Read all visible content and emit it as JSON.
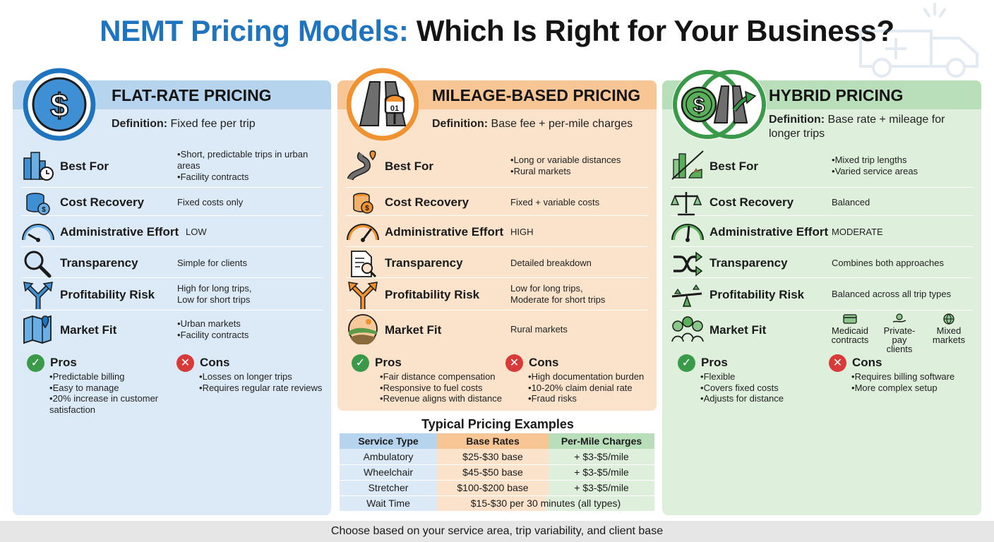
{
  "title": {
    "part1": "NEMT Pricing Models:",
    "part2": "Which Is Right for Your Business?"
  },
  "row_labels": {
    "best_for": "Best For",
    "cost_recovery": "Cost Recovery",
    "admin_effort": "Administrative Effort",
    "transparency": "Transparency",
    "profit_risk": "Profitability Risk",
    "market_fit": "Market Fit"
  },
  "pros_label": "Pros",
  "cons_label": "Cons",
  "definition_label": "Definition:",
  "flat": {
    "title": "FLAT-RATE PRICING",
    "definition": "Fixed fee per trip",
    "best_for": [
      "Short, predictable trips in urban areas",
      "Facility contracts"
    ],
    "cost_recovery": "Fixed costs only",
    "admin_effort": "LOW",
    "transparency": "Simple for clients",
    "profit_risk": [
      "High for long trips,",
      "Low for short trips"
    ],
    "market_fit": [
      "Urban markets",
      "Facility contracts"
    ],
    "pros": [
      "Predictable billing",
      "Easy to manage",
      "20% increase in customer satisfaction"
    ],
    "cons": [
      "Losses on longer trips",
      "Requires regular rate reviews"
    ]
  },
  "mileage": {
    "title": "MILEAGE-BASED PRICING",
    "definition": "Base fee + per-mile charges",
    "sign_number": "01",
    "best_for": [
      "Long or variable distances",
      "Rural markets"
    ],
    "cost_recovery": "Fixed + variable costs",
    "admin_effort": "HIGH",
    "transparency": "Detailed breakdown",
    "profit_risk": [
      "Low for long trips,",
      "Moderate for short trips"
    ],
    "market_fit": "Rural markets",
    "pros": [
      "Fair distance compensation",
      "Responsive to fuel costs",
      "Revenue aligns with distance"
    ],
    "cons": [
      "High documentation burden",
      "10-20% claim denial rate",
      "Fraud risks"
    ]
  },
  "hybrid": {
    "title": "HYBRID PRICING",
    "definition": "Base rate + mileage for longer trips",
    "best_for": [
      "Mixed trip lengths",
      "Varied service areas"
    ],
    "cost_recovery": "Balanced",
    "admin_effort": "MODERATE",
    "transparency": "Combines both approaches",
    "profit_risk": "Balanced across all trip types",
    "market_fit": [
      {
        "l1": "Medicaid",
        "l2": "contracts"
      },
      {
        "l1": "Private-pay",
        "l2": "clients"
      },
      {
        "l1": "Mixed",
        "l2": "markets"
      }
    ],
    "pros": [
      "Flexible",
      "Covers fixed costs",
      "Adjusts for distance"
    ],
    "cons": [
      "Requires billing software",
      "More complex setup"
    ]
  },
  "pricing_table": {
    "title": "Typical Pricing Examples",
    "headers": [
      "Service Type",
      "Base Rates",
      "Per-Mile Charges"
    ],
    "rows": [
      [
        "Ambulatory",
        "$25-$30 base",
        "+ $3-$5/mile"
      ],
      [
        "Wheelchair",
        "$45-$50 base",
        "+ $3-$5/mile"
      ],
      [
        "Stretcher",
        "$100-$200 base",
        "+ $3-$5/mile"
      ]
    ],
    "wait_row": [
      "Wait Time",
      "$15-$30 per 30 minutes (all types)"
    ]
  },
  "footer": "Choose based on your service area, trip variability, and client base",
  "colors": {
    "blue_accent": "#1f74bf",
    "orange_accent": "#f0922f",
    "green_accent": "#3a9a4a",
    "flat_bg": "#dceaf7",
    "mileage_bg": "#fbe2cb",
    "hybrid_bg": "#def0dc"
  },
  "icons": {
    "flat_header": "dollar-coin-icon",
    "mileage_header": "road-sign-icon",
    "hybrid_header": "dollar-road-merge-icon",
    "ambulance": "ambulance-icon"
  }
}
